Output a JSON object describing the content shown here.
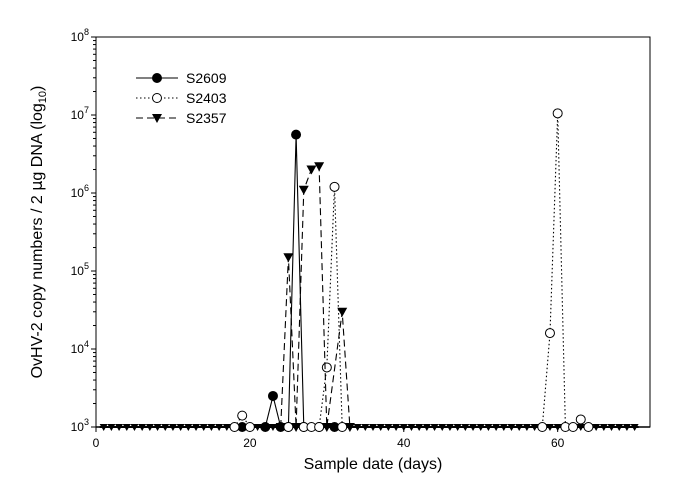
{
  "chart_data": {
    "type": "line",
    "xlabel": "Sample date (days)",
    "ylabel_prefix": "OvHV-2 copy numbers / 2 ",
    "ylabel_mu": "μ",
    "ylabel_rest": "g DNA (log",
    "ylabel_sub": "10",
    "ylabel_close": ")",
    "xlim": [
      0,
      72
    ],
    "ylim_log10": [
      3,
      8
    ],
    "y_scale": "log",
    "grid": false,
    "legend_position": "top-left",
    "x_ticks": [
      {
        "value": 0,
        "label": "0"
      },
      {
        "value": 20,
        "label": "20"
      },
      {
        "value": 40,
        "label": "40"
      },
      {
        "value": 60,
        "label": "60"
      }
    ],
    "y_ticks": [
      {
        "exp": 3,
        "base": "10",
        "sup": "3"
      },
      {
        "exp": 4,
        "base": "10",
        "sup": "4"
      },
      {
        "exp": 5,
        "base": "10",
        "sup": "5"
      },
      {
        "exp": 6,
        "base": "10",
        "sup": "6"
      },
      {
        "exp": 7,
        "base": "10",
        "sup": "7"
      },
      {
        "exp": 8,
        "base": "10",
        "sup": "8"
      }
    ],
    "series": [
      {
        "name": "S2609",
        "marker": "filled-circle",
        "line": "solid",
        "points": [
          {
            "x": 19,
            "y": 1000
          },
          {
            "x": 22,
            "y": 1000
          },
          {
            "x": 23,
            "y": 2500
          },
          {
            "x": 24,
            "y": 1000
          },
          {
            "x": 25,
            "y": 1000
          },
          {
            "x": 26,
            "y": 5600000
          },
          {
            "x": 27,
            "y": 1000
          },
          {
            "x": 29,
            "y": 1000
          },
          {
            "x": 31,
            "y": 1000
          }
        ]
      },
      {
        "name": "S2403",
        "marker": "open-circle",
        "line": "dotted",
        "points": [
          {
            "x": 18,
            "y": 1000
          },
          {
            "x": 19,
            "y": 1400
          },
          {
            "x": 20,
            "y": 1000
          },
          {
            "x": 25,
            "y": 1000
          },
          {
            "x": 27,
            "y": 1000
          },
          {
            "x": 28,
            "y": 1000
          },
          {
            "x": 29,
            "y": 1000
          },
          {
            "x": 30,
            "y": 5800
          },
          {
            "x": 31,
            "y": 1200000
          },
          {
            "x": 32,
            "y": 1000
          },
          {
            "x": 58,
            "y": 1000
          },
          {
            "x": 59,
            "y": 16000
          },
          {
            "x": 60,
            "y": 10500000
          },
          {
            "x": 61,
            "y": 1000
          },
          {
            "x": 62,
            "y": 1000
          },
          {
            "x": 63,
            "y": 1250
          },
          {
            "x": 64,
            "y": 1000
          }
        ]
      },
      {
        "name": "S2357",
        "marker": "filled-triangle-down",
        "line": "dashed",
        "points": [
          {
            "x": 24,
            "y": 1000
          },
          {
            "x": 25,
            "y": 150000
          },
          {
            "x": 26,
            "y": 1000
          },
          {
            "x": 27,
            "y": 1100000
          },
          {
            "x": 28,
            "y": 2000000
          },
          {
            "x": 29,
            "y": 2200000
          },
          {
            "x": 30,
            "y": 1000
          },
          {
            "x": 32,
            "y": 30000
          },
          {
            "x": 33,
            "y": 1000
          }
        ]
      }
    ]
  }
}
